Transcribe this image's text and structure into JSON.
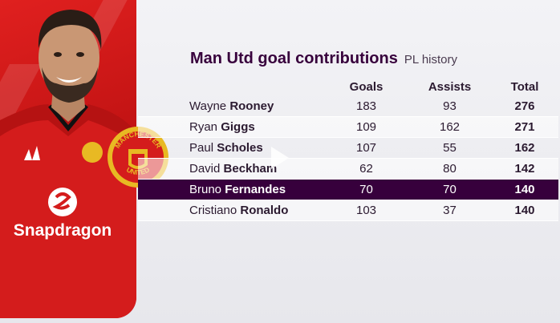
{
  "header": {
    "title": "Man Utd goal contributions",
    "subtitle": "PL history"
  },
  "columns": {
    "goals": "Goals",
    "assists": "Assists",
    "total": "Total"
  },
  "rows": [
    {
      "first": "Wayne",
      "last": "Rooney",
      "goals": "183",
      "assists": "93",
      "total": "276"
    },
    {
      "first": "Ryan",
      "last": "Giggs",
      "goals": "109",
      "assists": "162",
      "total": "271"
    },
    {
      "first": "Paul",
      "last": "Scholes",
      "goals": "107",
      "assists": "55",
      "total": "162"
    },
    {
      "first": "David",
      "last": "Beckham",
      "goals": "62",
      "assists": "80",
      "total": "142"
    },
    {
      "first": "Bruno",
      "last": "Fernandes",
      "goals": "70",
      "assists": "70",
      "total": "140"
    },
    {
      "first": "Cristiano",
      "last": "Ronaldo",
      "goals": "103",
      "assists": "37",
      "total": "140"
    }
  ],
  "highlight_row": 4,
  "photo": {
    "sponsor": "Snapdragon",
    "crest_top": "MANCHESTER",
    "crest_bottom": "UNITED",
    "icon": "player-photo"
  },
  "colors": {
    "brand_purple": "#37003c",
    "kit_red": "#d31a1a"
  }
}
